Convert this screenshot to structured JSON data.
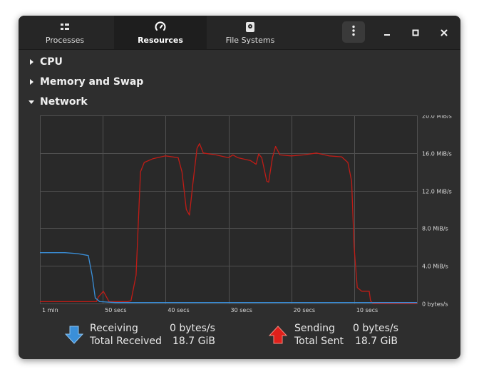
{
  "tabs": [
    {
      "label": "Processes",
      "icon": "processes-icon"
    },
    {
      "label": "Resources",
      "icon": "speedometer-icon",
      "active": true
    },
    {
      "label": "File Systems",
      "icon": "disk-icon"
    }
  ],
  "sections": [
    {
      "label": "CPU",
      "expanded": false
    },
    {
      "label": "Memory and Swap",
      "expanded": false
    },
    {
      "label": "Network",
      "expanded": true
    }
  ],
  "legend": {
    "receiving": {
      "label": "Receiving",
      "value": "0 bytes/s",
      "total_label": "Total Received",
      "total_value": "18.7 GiB",
      "color": "#3a8fd9"
    },
    "sending": {
      "label": "Sending",
      "value": "0 bytes/s",
      "total_label": "Total Sent",
      "total_value": "18.7 GiB",
      "color": "#e0201b"
    }
  },
  "chart_data": {
    "type": "line",
    "x_ticks": [
      "1 min",
      "50 secs",
      "40 secs",
      "30 secs",
      "20 secs",
      "10 secs"
    ],
    "y_ticks": [
      "20.0 MiB/s",
      "16.0 MiB/s",
      "12.0 MiB/s",
      "8.0 MiB/s",
      "4.0 MiB/s",
      "0 bytes/s"
    ],
    "ylim": [
      0,
      20
    ],
    "xlim": [
      60,
      0
    ],
    "x_unit": "seconds ago",
    "y_unit": "MiB/s",
    "grid": true,
    "series": [
      {
        "name": "Sending",
        "color": "#c01c16",
        "points": [
          [
            60,
            0.2
          ],
          [
            54,
            0.2
          ],
          [
            51,
            0.2
          ],
          [
            50.7,
            0.7
          ],
          [
            49.9,
            1.3
          ],
          [
            49,
            0.2
          ],
          [
            46,
            0.2
          ],
          [
            45.5,
            0.3
          ],
          [
            44.7,
            3
          ],
          [
            44,
            14
          ],
          [
            43.4,
            15
          ],
          [
            42,
            15.4
          ],
          [
            40,
            15.7
          ],
          [
            38,
            15.5
          ],
          [
            37.4,
            14
          ],
          [
            36.7,
            10
          ],
          [
            36.2,
            9.4
          ],
          [
            35.7,
            12.5
          ],
          [
            35,
            16.5
          ],
          [
            34.6,
            17
          ],
          [
            34,
            16
          ],
          [
            32,
            15.8
          ],
          [
            30,
            15.5
          ],
          [
            29.3,
            15.8
          ],
          [
            28.5,
            15.5
          ],
          [
            26.5,
            15.2
          ],
          [
            25.6,
            14.8
          ],
          [
            25.2,
            15.9
          ],
          [
            24.7,
            15.5
          ],
          [
            23.9,
            13
          ],
          [
            23.6,
            12.9
          ],
          [
            23,
            15.5
          ],
          [
            22.5,
            16.7
          ],
          [
            21.8,
            15.8
          ],
          [
            20,
            15.7
          ],
          [
            18,
            15.8
          ],
          [
            16,
            16
          ],
          [
            14,
            15.7
          ],
          [
            12,
            15.6
          ],
          [
            11,
            15
          ],
          [
            10.4,
            13
          ],
          [
            10,
            6
          ],
          [
            9.5,
            1.7
          ],
          [
            8.8,
            1.3
          ],
          [
            7.6,
            1.3
          ],
          [
            7.4,
            0.3
          ],
          [
            7,
            0
          ],
          [
            0,
            0
          ]
        ]
      },
      {
        "name": "Receiving",
        "color": "#3a8fd9",
        "points": [
          [
            60,
            5.4
          ],
          [
            56,
            5.4
          ],
          [
            54,
            5.3
          ],
          [
            52.3,
            5.1
          ],
          [
            51.7,
            3
          ],
          [
            51.2,
            0.6
          ],
          [
            50.5,
            0.2
          ],
          [
            48,
            0.1
          ],
          [
            30,
            0.1
          ],
          [
            10,
            0.1
          ],
          [
            0,
            0.1
          ]
        ]
      }
    ]
  }
}
